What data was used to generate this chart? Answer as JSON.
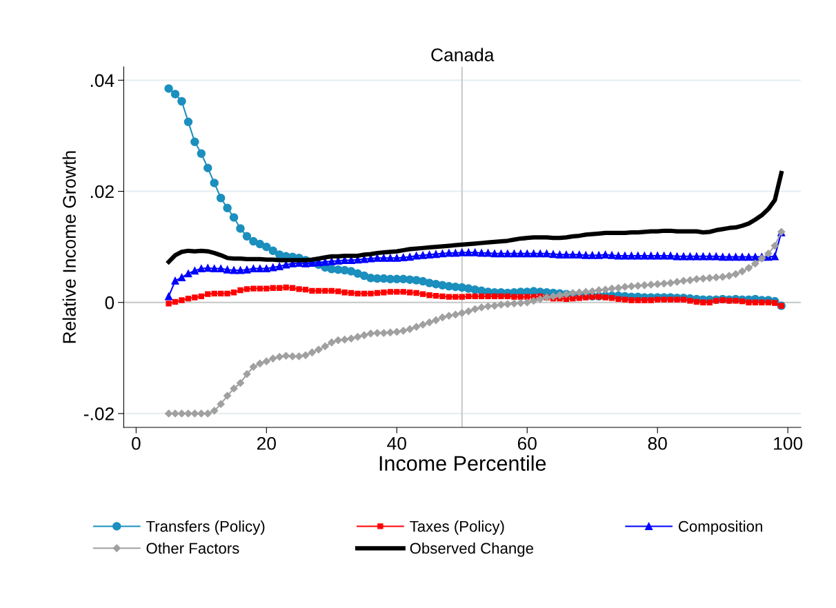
{
  "chart_data": {
    "type": "line",
    "title": "Canada",
    "xlabel": "Income Percentile",
    "ylabel": "Relative Income Growth",
    "x": [
      5,
      6,
      7,
      8,
      9,
      10,
      11,
      12,
      13,
      14,
      15,
      16,
      17,
      18,
      19,
      20,
      21,
      22,
      23,
      24,
      25,
      26,
      27,
      28,
      29,
      30,
      31,
      32,
      33,
      34,
      35,
      36,
      37,
      38,
      39,
      40,
      41,
      42,
      43,
      44,
      45,
      46,
      47,
      48,
      49,
      50,
      51,
      52,
      53,
      54,
      55,
      56,
      57,
      58,
      59,
      60,
      61,
      62,
      63,
      64,
      65,
      66,
      67,
      68,
      69,
      70,
      71,
      72,
      73,
      74,
      75,
      76,
      77,
      78,
      79,
      80,
      81,
      82,
      83,
      84,
      85,
      86,
      87,
      88,
      89,
      90,
      91,
      92,
      93,
      94,
      95,
      96,
      97,
      98,
      99
    ],
    "series": [
      {
        "name": "Transfers (Policy)",
        "color": "#1b8fbd",
        "marker": "circle",
        "values": [
          0.0385,
          0.0375,
          0.0362,
          0.0325,
          0.0289,
          0.0268,
          0.0242,
          0.0215,
          0.0188,
          0.017,
          0.0153,
          0.0133,
          0.0119,
          0.011,
          0.0105,
          0.01,
          0.0093,
          0.0086,
          0.0083,
          0.0082,
          0.008,
          0.0076,
          0.0072,
          0.0068,
          0.0063,
          0.006,
          0.0059,
          0.0058,
          0.0056,
          0.0052,
          0.0048,
          0.0044,
          0.0043,
          0.0043,
          0.0042,
          0.0042,
          0.0042,
          0.0041,
          0.004,
          0.0038,
          0.0035,
          0.0033,
          0.0031,
          0.0029,
          0.0028,
          0.0027,
          0.0025,
          0.0023,
          0.0021,
          0.0019,
          0.0018,
          0.0018,
          0.0017,
          0.0018,
          0.0019,
          0.0019,
          0.002,
          0.0019,
          0.0018,
          0.0017,
          0.0016,
          0.0015,
          0.0014,
          0.0013,
          0.0012,
          0.0011,
          0.0011,
          0.0012,
          0.0012,
          0.0012,
          0.0011,
          0.001,
          0.001,
          0.0009,
          0.0009,
          0.0009,
          0.0009,
          0.0009,
          0.0008,
          0.0008,
          0.0007,
          0.0006,
          0.0005,
          0.0005,
          0.0005,
          0.0006,
          0.0005,
          0.0006,
          0.0005,
          0.0005,
          0.0006,
          0.0004,
          0.0004,
          0.0002,
          -0.0006
        ]
      },
      {
        "name": "Taxes (Policy)",
        "color": "#ff0000",
        "marker": "square",
        "values": [
          -0.0002,
          0.0001,
          0.0004,
          0.0007,
          0.0009,
          0.0011,
          0.0015,
          0.0016,
          0.0016,
          0.0016,
          0.0018,
          0.0022,
          0.0024,
          0.0025,
          0.0025,
          0.0025,
          0.0026,
          0.0026,
          0.0027,
          0.0026,
          0.0024,
          0.0023,
          0.0021,
          0.0021,
          0.0021,
          0.0021,
          0.002,
          0.0018,
          0.0017,
          0.0016,
          0.0016,
          0.0016,
          0.0017,
          0.0018,
          0.0019,
          0.0019,
          0.0019,
          0.0018,
          0.0017,
          0.0015,
          0.0013,
          0.0012,
          0.0011,
          0.001,
          0.001,
          0.001,
          0.0011,
          0.0011,
          0.0011,
          0.0011,
          0.0011,
          0.0011,
          0.0011,
          0.001,
          0.001,
          0.001,
          0.001,
          0.0011,
          0.0009,
          0.0007,
          0.0007,
          0.0006,
          0.0007,
          0.0008,
          0.0009,
          0.001,
          0.001,
          0.0009,
          0.0008,
          0.0006,
          0.0005,
          0.0004,
          0.0004,
          0.0004,
          0.0004,
          0.0005,
          0.0005,
          0.0005,
          0.0005,
          0.0005,
          0.0003,
          0.0001,
          0.0,
          0.0,
          0.0003,
          0.0004,
          0.0003,
          0.0003,
          0.0002,
          0.0,
          0.0,
          0.0,
          0.0,
          -0.0001,
          -0.0006
        ]
      },
      {
        "name": "Composition",
        "color": "#0000ff",
        "marker": "triangle",
        "values": [
          0.0011,
          0.0039,
          0.0045,
          0.0052,
          0.0057,
          0.0061,
          0.0062,
          0.0061,
          0.0061,
          0.0059,
          0.0058,
          0.0058,
          0.0059,
          0.0061,
          0.0061,
          0.0061,
          0.0063,
          0.0065,
          0.0068,
          0.007,
          0.0071,
          0.007,
          0.0071,
          0.0072,
          0.0073,
          0.0074,
          0.0075,
          0.0076,
          0.0076,
          0.0077,
          0.0078,
          0.0079,
          0.008,
          0.008,
          0.008,
          0.008,
          0.0081,
          0.0082,
          0.0084,
          0.0085,
          0.0086,
          0.0087,
          0.0088,
          0.0089,
          0.0089,
          0.009,
          0.009,
          0.009,
          0.0089,
          0.0089,
          0.0088,
          0.0088,
          0.0088,
          0.0088,
          0.0088,
          0.0088,
          0.0088,
          0.0088,
          0.0088,
          0.0087,
          0.0086,
          0.0086,
          0.0086,
          0.0086,
          0.0085,
          0.0085,
          0.0085,
          0.0086,
          0.0085,
          0.0084,
          0.0084,
          0.0084,
          0.0084,
          0.0084,
          0.0084,
          0.0084,
          0.0084,
          0.0084,
          0.0083,
          0.0083,
          0.0083,
          0.0083,
          0.0083,
          0.0083,
          0.0083,
          0.0082,
          0.0082,
          0.0082,
          0.0082,
          0.0082,
          0.0082,
          0.0082,
          0.0082,
          0.0083,
          0.0126
        ]
      },
      {
        "name": "Other Factors",
        "color": "#a0a0a0",
        "marker": "diamond",
        "values": [
          -0.02,
          -0.02,
          -0.02,
          -0.02,
          -0.02,
          -0.02,
          -0.02,
          -0.0195,
          -0.0183,
          -0.0168,
          -0.0155,
          -0.0145,
          -0.0129,
          -0.0116,
          -0.011,
          -0.0106,
          -0.0101,
          -0.0098,
          -0.0096,
          -0.0097,
          -0.0097,
          -0.0095,
          -0.009,
          -0.0085,
          -0.0079,
          -0.0072,
          -0.0068,
          -0.0067,
          -0.0065,
          -0.0062,
          -0.0059,
          -0.0056,
          -0.0055,
          -0.0055,
          -0.0054,
          -0.0053,
          -0.0051,
          -0.0048,
          -0.0044,
          -0.004,
          -0.0036,
          -0.0032,
          -0.0027,
          -0.0024,
          -0.0022,
          -0.0019,
          -0.0016,
          -0.0012,
          -0.0009,
          -0.0007,
          -0.0006,
          -0.0004,
          -0.0003,
          -0.0002,
          -0.0001,
          0.0,
          0.0003,
          0.0006,
          0.0009,
          0.0011,
          0.0013,
          0.0015,
          0.0017,
          0.0018,
          0.0019,
          0.002,
          0.0022,
          0.0023,
          0.0025,
          0.0026,
          0.0028,
          0.0029,
          0.003,
          0.0031,
          0.0032,
          0.0033,
          0.0034,
          0.0035,
          0.0037,
          0.0039,
          0.004,
          0.0042,
          0.0043,
          0.0044,
          0.0045,
          0.0046,
          0.0048,
          0.0051,
          0.0056,
          0.0062,
          0.007,
          0.0079,
          0.0088,
          0.0102,
          0.0127
        ]
      },
      {
        "name": "Observed Change",
        "color": "#000000",
        "marker": "none",
        "values": [
          0.0073,
          0.0085,
          0.0091,
          0.0093,
          0.0092,
          0.0093,
          0.0092,
          0.0089,
          0.0085,
          0.008,
          0.0079,
          0.0079,
          0.0078,
          0.0078,
          0.0078,
          0.0077,
          0.0077,
          0.0076,
          0.0076,
          0.0076,
          0.0076,
          0.0076,
          0.0077,
          0.0079,
          0.0081,
          0.0083,
          0.0083,
          0.0084,
          0.0084,
          0.0084,
          0.0086,
          0.0087,
          0.0089,
          0.009,
          0.0091,
          0.0092,
          0.0094,
          0.0096,
          0.0097,
          0.0098,
          0.0099,
          0.01,
          0.0101,
          0.0102,
          0.0103,
          0.0104,
          0.0105,
          0.0106,
          0.0107,
          0.0108,
          0.0109,
          0.011,
          0.0111,
          0.0113,
          0.0115,
          0.0116,
          0.0117,
          0.0117,
          0.0117,
          0.0116,
          0.0116,
          0.0117,
          0.0119,
          0.012,
          0.0122,
          0.0123,
          0.0124,
          0.0125,
          0.0125,
          0.0125,
          0.0125,
          0.0126,
          0.0126,
          0.0127,
          0.0128,
          0.0128,
          0.0129,
          0.0129,
          0.0128,
          0.0128,
          0.0128,
          0.0128,
          0.0126,
          0.0127,
          0.013,
          0.0132,
          0.0134,
          0.0135,
          0.0138,
          0.0142,
          0.0149,
          0.0157,
          0.0168,
          0.0184,
          0.0233
        ]
      }
    ],
    "xlim": [
      -1.9,
      102
    ],
    "xticks": [
      0,
      20,
      40,
      60,
      80,
      100
    ],
    "ylim": [
      -0.0225,
      0.0424
    ],
    "yticks": [
      {
        "value": -0.02,
        "label": "-.02"
      },
      {
        "value": 0,
        "label": "0"
      },
      {
        "value": 0.02,
        "label": ".02"
      },
      {
        "value": 0.04,
        "label": ".04"
      }
    ],
    "ref_lines": [
      {
        "axis": "x",
        "value": 50,
        "color": "#c8c8c8"
      },
      {
        "axis": "y",
        "value": 0,
        "color": "#c8c8c8"
      }
    ],
    "grid": "y",
    "legend": "bottom",
    "line_style": "solid"
  }
}
